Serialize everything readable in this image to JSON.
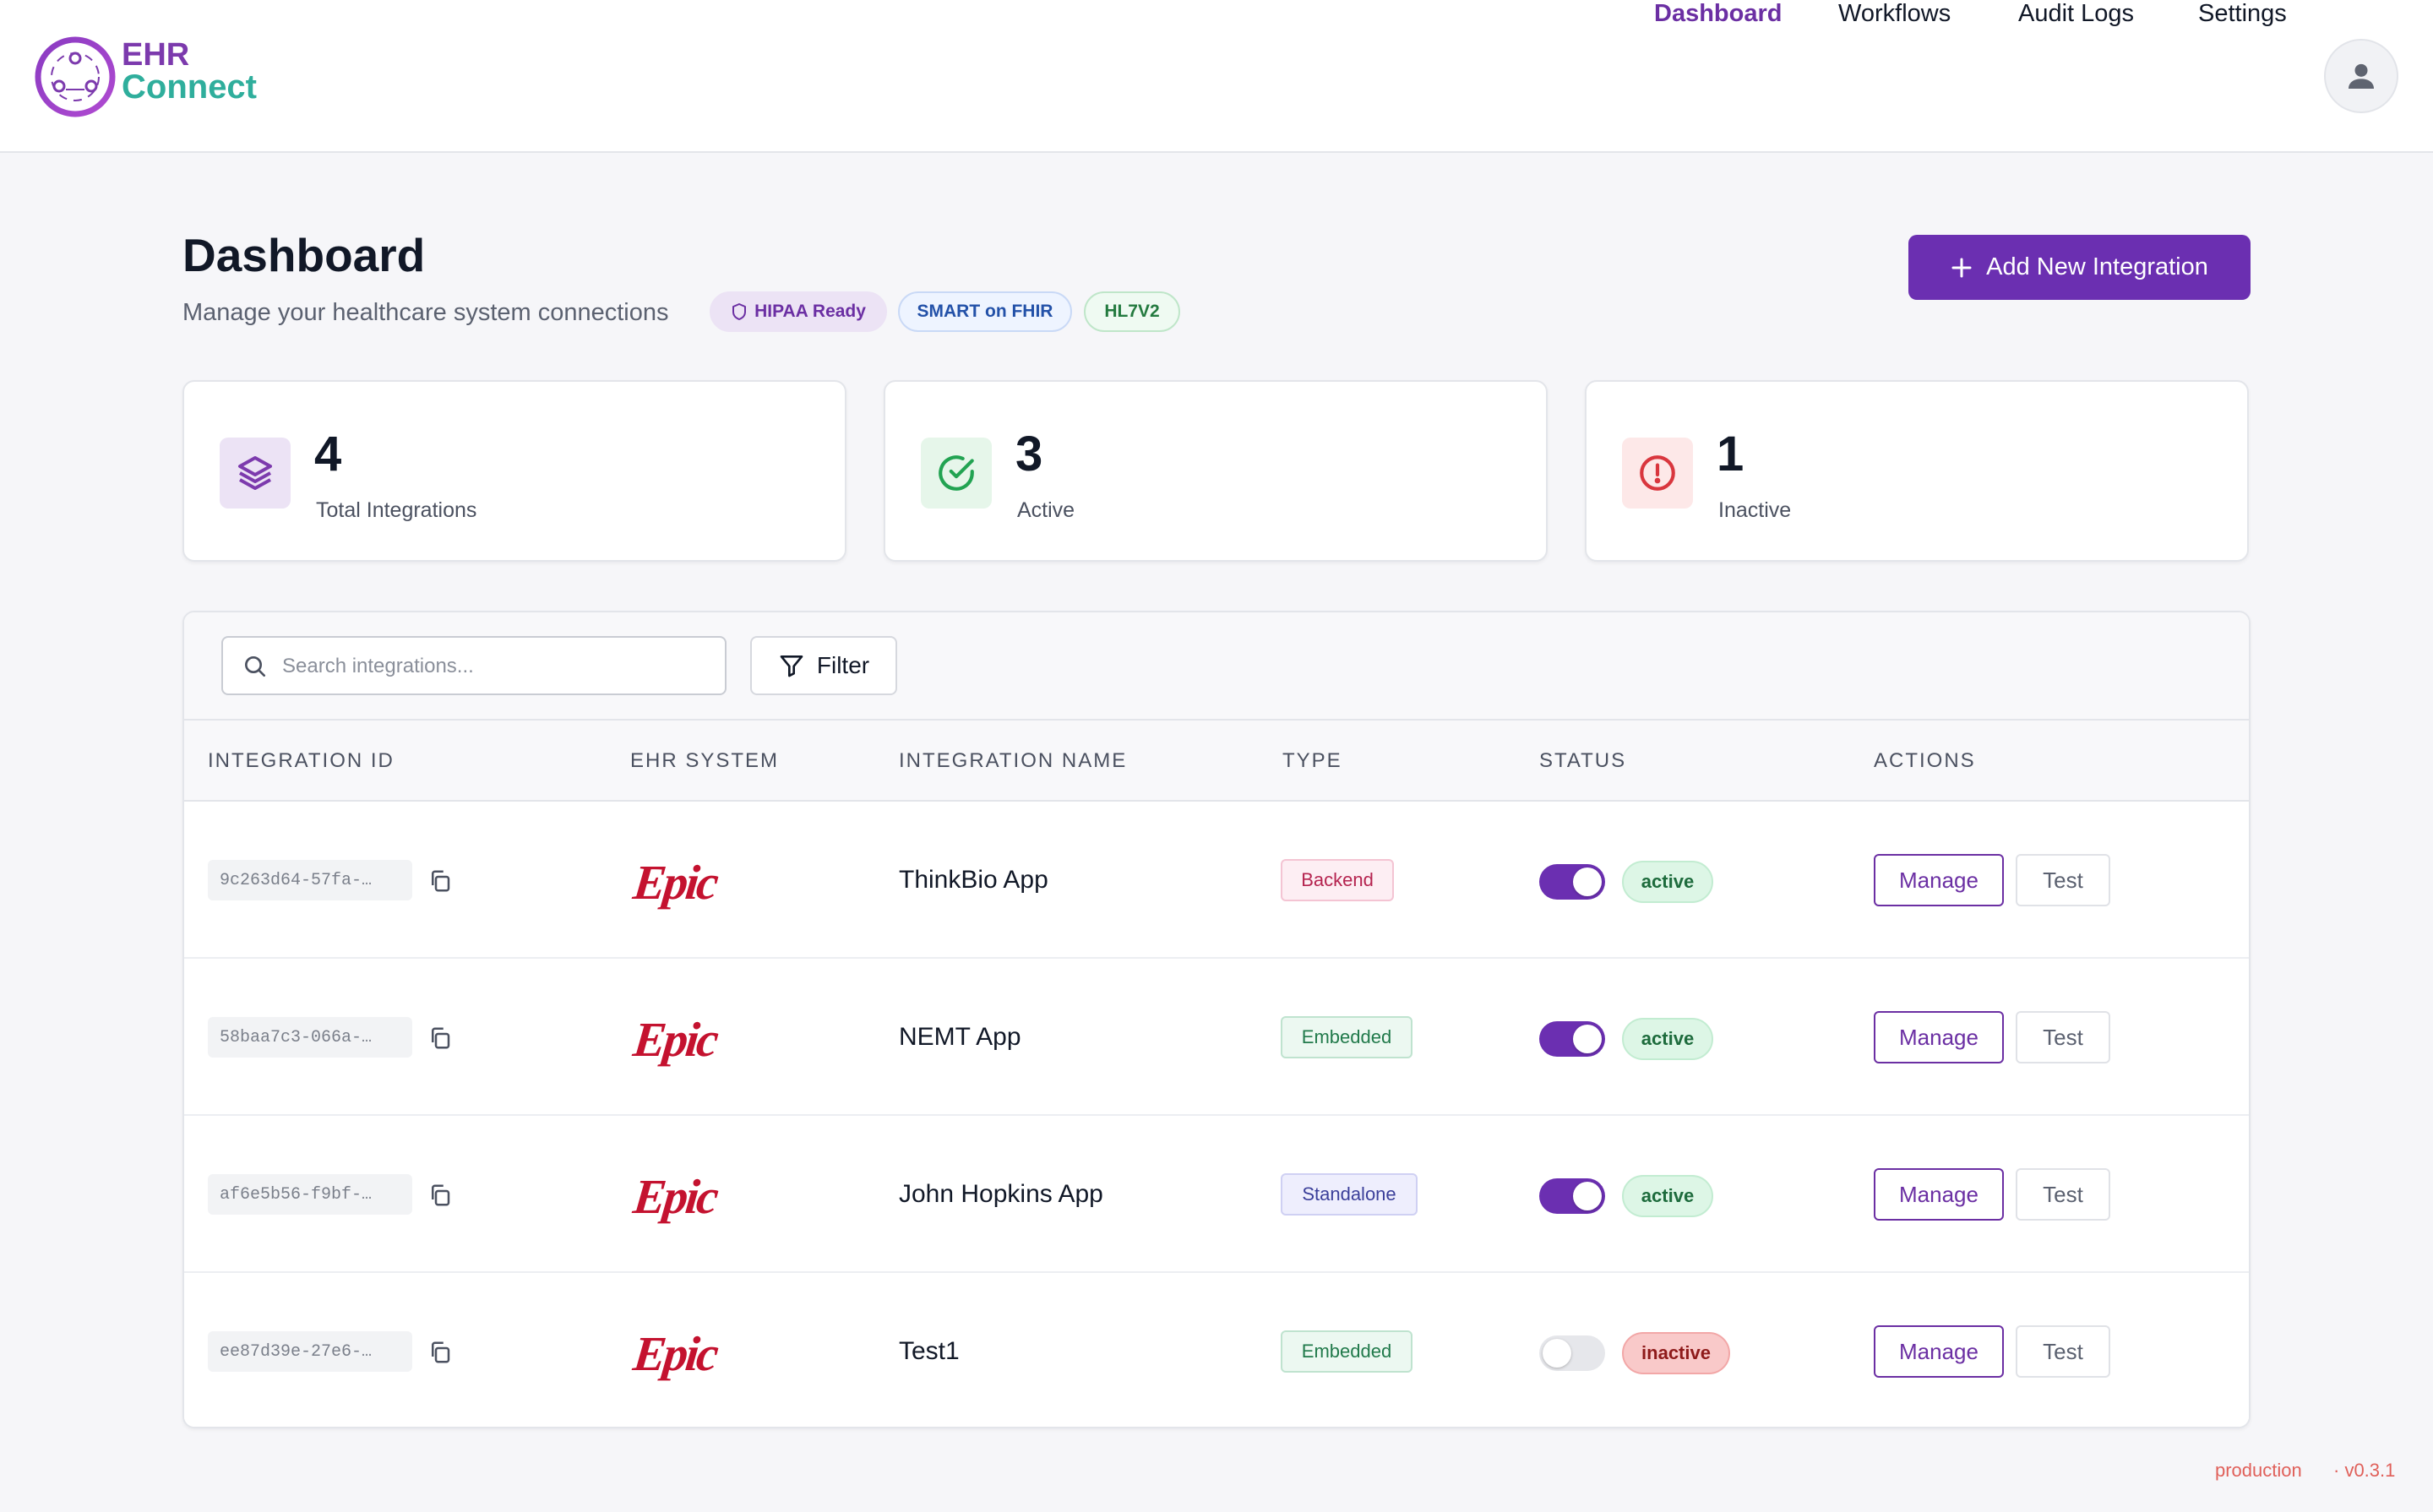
{
  "brand": {
    "line1": "EHR",
    "line2": "Connect",
    "primary": "#6b2fb1",
    "teal": "#2fae9c"
  },
  "nav": {
    "items": [
      {
        "label": "Dashboard",
        "active": true
      },
      {
        "label": "Workflows",
        "active": false
      },
      {
        "label": "Audit Logs",
        "active": false
      },
      {
        "label": "Settings",
        "active": false
      }
    ],
    "avatar_icon": "user-icon"
  },
  "header": {
    "title": "Dashboard",
    "subtitle": "Manage your healthcare system connections",
    "badges": [
      {
        "label": "HIPAA Ready",
        "icon": "shield-icon"
      },
      {
        "label": "SMART on FHIR"
      },
      {
        "label": "HL7V2"
      }
    ],
    "add_button": "Add New Integration"
  },
  "stats": [
    {
      "value": "4",
      "label": "Total Integrations",
      "icon": "layers-icon",
      "color": "#7c3aad"
    },
    {
      "value": "3",
      "label": "Active",
      "icon": "check-circle-icon",
      "color": "#22a352"
    },
    {
      "value": "1",
      "label": "Inactive",
      "icon": "alert-circle-icon",
      "color": "#d9363e"
    }
  ],
  "toolbar": {
    "search_placeholder": "Search integrations...",
    "filter_label": "Filter"
  },
  "table": {
    "columns": [
      "INTEGRATION ID",
      "EHR SYSTEM",
      "INTEGRATION NAME",
      "TYPE",
      "STATUS",
      "ACTIONS"
    ],
    "rows": [
      {
        "id": "9c263d64-57fa-…",
        "ehr": "Epic",
        "name": "ThinkBio App",
        "type": "Backend",
        "enabled": true,
        "status": "active"
      },
      {
        "id": "58baa7c3-066a-…",
        "ehr": "Epic",
        "name": "NEMT App",
        "type": "Embedded",
        "enabled": true,
        "status": "active"
      },
      {
        "id": "af6e5b56-f9bf-…",
        "ehr": "Epic",
        "name": "John Hopkins App",
        "type": "Standalone",
        "enabled": true,
        "status": "active"
      },
      {
        "id": "ee87d39e-27e6-…",
        "ehr": "Epic",
        "name": "Test1",
        "type": "Embedded",
        "enabled": false,
        "status": "inactive"
      }
    ],
    "manage_label": "Manage",
    "test_label": "Test"
  },
  "footer": {
    "environment": "production",
    "version": "· v0.3.1"
  }
}
